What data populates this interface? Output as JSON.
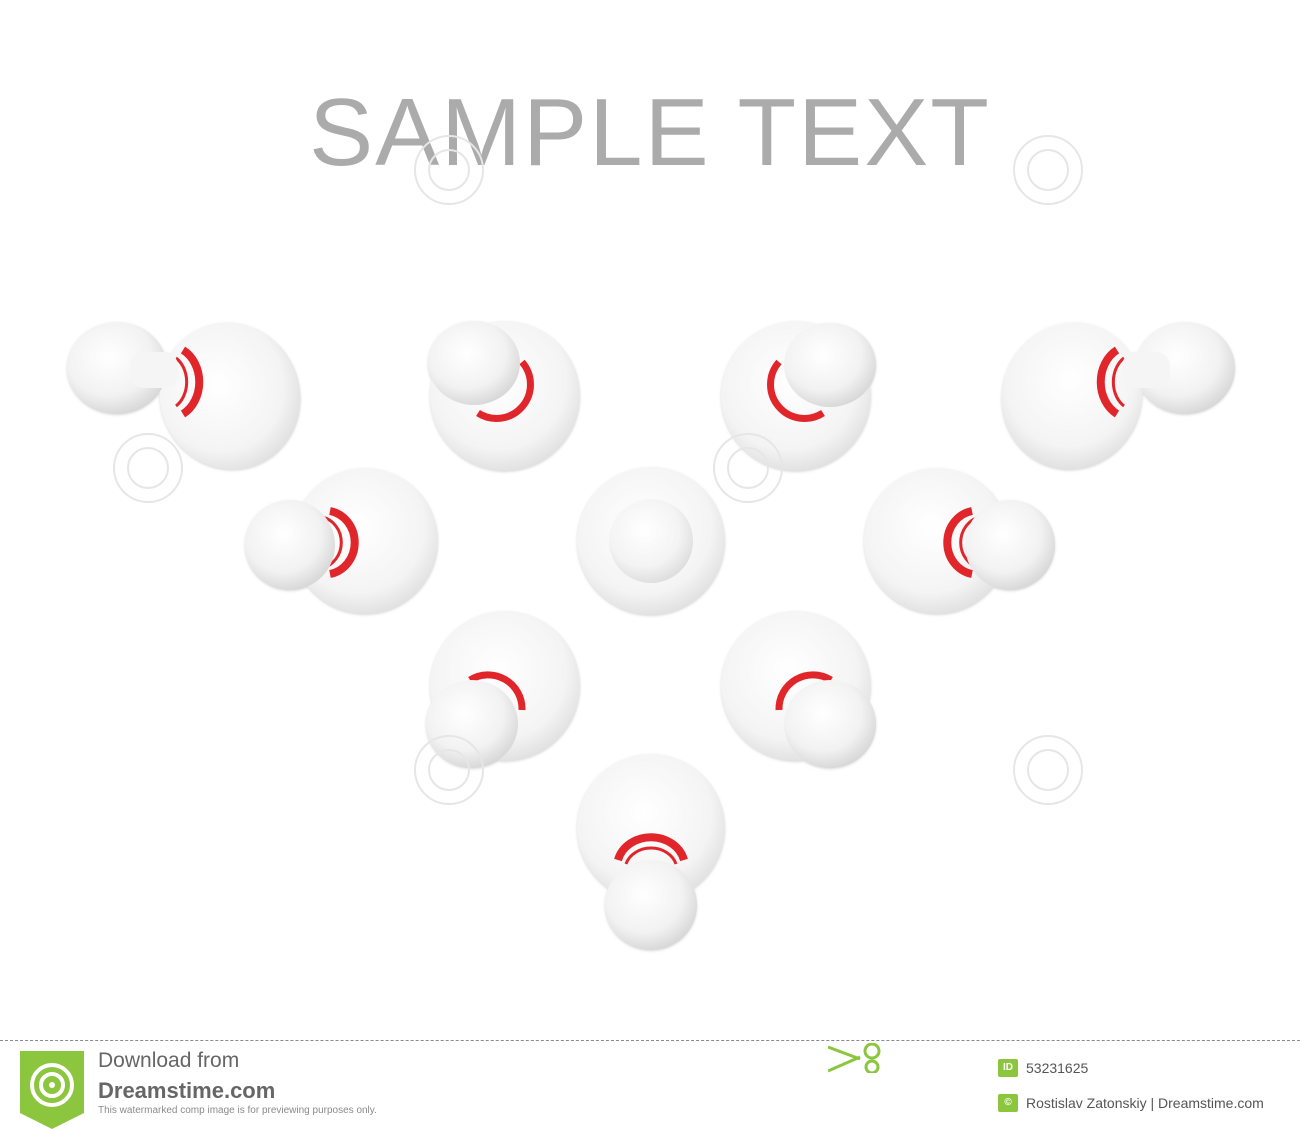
{
  "headline": "SAMPLE  TEXT",
  "colors": {
    "pin_stripe": "#e0262b",
    "pin_body": "#f7f7f7",
    "brand_green": "#8cc63f",
    "headline": "#ababab"
  },
  "pins": {
    "count": 10,
    "arrangement": "inverted triangle",
    "view": "top-down"
  },
  "footer": {
    "download_label": "Download from",
    "site_name": "Dreamstime.com",
    "disclaimer": "This watermarked comp image is for previewing purposes only.",
    "id_label": "ID",
    "image_id": "53231625",
    "author_credit": "Rostislav Zatonskiy | Dreamstime.com",
    "logo_icon": "dreamstime-spiral-icon",
    "scissors_icon": "scissors-icon",
    "copyright_icon": "copyright-icon"
  }
}
